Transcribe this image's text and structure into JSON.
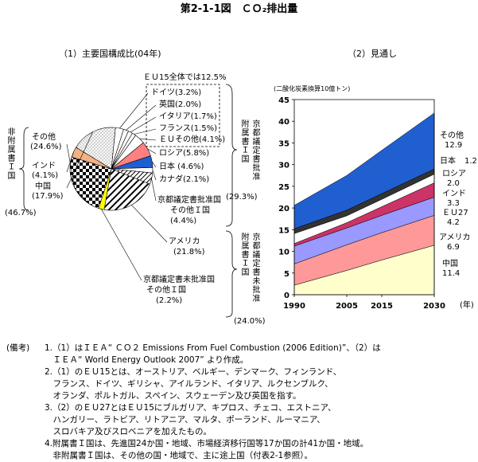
{
  "figure": {
    "title": "第2-1-1図　ＣＯ₂排出量"
  },
  "pie_panel": {
    "title": "（1）主要国構成比(04年)",
    "eu15_total": "ＥＵ15全体では12.5%",
    "groups": {
      "non_annex1": {
        "label": "非附属書Ｉ国",
        "pct": "(46.7%)"
      },
      "ratified": {
        "label1": "附属書Ｉ国",
        "label2": "京都議定書批准",
        "pct": "(29.3%)"
      },
      "nonratified": {
        "label1": "附属書Ｉ国",
        "label2": "京都議定書未批准",
        "pct": "(24.0%)"
      }
    }
  },
  "area_panel": {
    "title": "（2）見通し"
  },
  "chart_data": [
    {
      "type": "pie",
      "title": "（1）主要国構成比(04年)",
      "slices": [
        {
          "name": "ドイツ",
          "value": 3.2,
          "label": "ドイツ(3.2%)",
          "fill": "#ffffff"
        },
        {
          "name": "英国",
          "value": 2.0,
          "label": "英国(2.0%)",
          "fill": "#ffffff"
        },
        {
          "name": "イタリア",
          "value": 1.7,
          "label": "イタリア(1.7%)",
          "fill": "#ffffff"
        },
        {
          "name": "フランス",
          "value": 1.5,
          "label": "フランス(1.5%)",
          "fill": "#ffffff"
        },
        {
          "name": "ＥＵその他",
          "value": 4.1,
          "label": "ＥＵその他(4.1%)",
          "fill": "#ffffff"
        },
        {
          "name": "ロシア",
          "value": 5.8,
          "label": "ロシア(5.8%)",
          "fill": "#ff8080"
        },
        {
          "name": "日本",
          "value": 4.6,
          "label": "日本 (4.6%)",
          "fill": "#1f5fd0"
        },
        {
          "name": "カナダ",
          "value": 2.1,
          "label": "カナダ(2.1%)",
          "fill": "#ffffff"
        },
        {
          "name": "京都議定書批准国その他Ｉ国",
          "value": 4.4,
          "label": "京都議定書批准国",
          "label2": "その他Ｉ国",
          "pct_label": "(4.4%)",
          "fill": "pattern-stripes"
        },
        {
          "name": "アメリカ",
          "value": 21.8,
          "label": "アメリカ",
          "pct_label": "(21.8%)",
          "fill": "pattern-diag"
        },
        {
          "name": "京都議定書未批准国その他Ｉ国",
          "value": 2.2,
          "label": "京都議定書未批准国",
          "label2": "その他Ｉ国",
          "pct_label": "(2.2%)",
          "fill": "#ffff00"
        },
        {
          "name": "その他",
          "value": 24.6,
          "label": "その他",
          "pct_label": "(24.6%)",
          "fill": "pattern-check"
        },
        {
          "name": "インド",
          "value": 4.1,
          "label": "インド",
          "pct_label": "(4.1%)",
          "fill": "#f4b183"
        },
        {
          "name": "中国",
          "value": 17.9,
          "label": "中国",
          "pct_label": "(17.9%)",
          "fill": "pattern-dots"
        }
      ]
    },
    {
      "type": "area",
      "title": "（2）見通し",
      "unit": "(二酸化炭素換算10億トン)",
      "xunit": "(年)",
      "x": [
        1990,
        2005,
        2015,
        2030
      ],
      "ylim": [
        0,
        45
      ],
      "yticks": [
        0,
        5,
        10,
        15,
        20,
        25,
        30,
        35,
        40,
        45
      ],
      "series": [
        {
          "name": "アメリカ",
          "values": [
            4.9,
            5.9,
            6.3,
            6.9
          ],
          "label_2030": "6.9",
          "color": "#ffffff"
        },
        {
          "name": "ＥＵ27",
          "values": [
            4.1,
            3.9,
            4.0,
            4.2
          ],
          "label_2030": "4.2",
          "color": "#9999ff"
        },
        {
          "name": "インド",
          "values": [
            0.6,
            1.2,
            2.0,
            3.3
          ],
          "label_2030": "3.3",
          "color": "#cc6699"
        },
        {
          "name": "ロシア",
          "values": [
            2.3,
            1.6,
            1.7,
            2.0
          ],
          "label_2030": "2.0",
          "color": "#ffffff"
        },
        {
          "name": "日本",
          "values": [
            1.1,
            1.3,
            1.3,
            1.2
          ],
          "label_2030": "1.2",
          "color": "#ffffff"
        },
        {
          "name": "その他",
          "values": [
            5.4,
            8.0,
            10.0,
            12.9
          ],
          "label_2030": "12.9",
          "color": "#1f5fd0"
        },
        {
          "name": "中国",
          "values": [
            2.2,
            5.6,
            8.0,
            11.4
          ],
          "label_2030": "11.4",
          "color": "#ffffcc"
        }
      ],
      "stack_order": [
        "中国",
        "アメリカ",
        "ＥＵ27",
        "インド",
        "ロシア",
        "日本",
        "その他"
      ],
      "layer_colors": {
        "中国": "#ffffcc",
        "アメリカ": "#ff9999",
        "ＥＵ27": "#9999ff",
        "インド": "#cc3366",
        "ロシア": "#ffffff",
        "日本": "#333333",
        "その他": "#1f5fd0"
      }
    }
  ],
  "notes": {
    "heading": "(備考)",
    "items": [
      [
        "1.（1）はＩＥＡ“ ＣＯ２ Emissions From Fuel Combustion (2006 Edition)”、（2）は",
        "　ＩＥＡ“ World Energy Outlook 2007” より作成。"
      ],
      [
        "2.（1）のＥＵ15とは、オーストリア、ベルギー、デンマーク、フィンランド、",
        "　フランス、ドイツ、ギリシャ、アイルランド、イタリア、ルクセンブルク、",
        "　オランダ、ポルトガル、スペイン、スウェーデン及び英国を指す。"
      ],
      [
        "3.（2）のＥＵ27とはＥＵ15にブルガリア、キプロス、チェコ、エストニア、",
        "　ハンガリー、ラトビア、リトアニア、マルタ、ポーランド、ルーマニア、",
        "　スロバキア及びスロベニアを加えたもの。"
      ],
      [
        "4.附属書Ｉ国は、先進国24か国・地域、市場経済移行国等17か国の計41か国・地域。",
        "　非附属書Ｉ国は、その他の国・地域で、主に途上国（付表2-1参照）。"
      ]
    ]
  }
}
